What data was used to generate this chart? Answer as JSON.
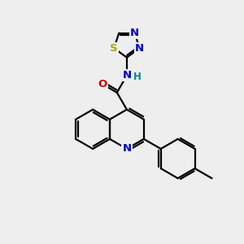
{
  "bg_color": "#eeeeee",
  "atom_colors": {
    "C": "#000000",
    "N": "#0000cc",
    "O": "#cc0000",
    "S": "#aaaa00",
    "H": "#008888"
  },
  "bond_color": "#000000",
  "bond_width": 1.6,
  "fig_size": [
    3.0,
    3.0
  ],
  "dpi": 100
}
